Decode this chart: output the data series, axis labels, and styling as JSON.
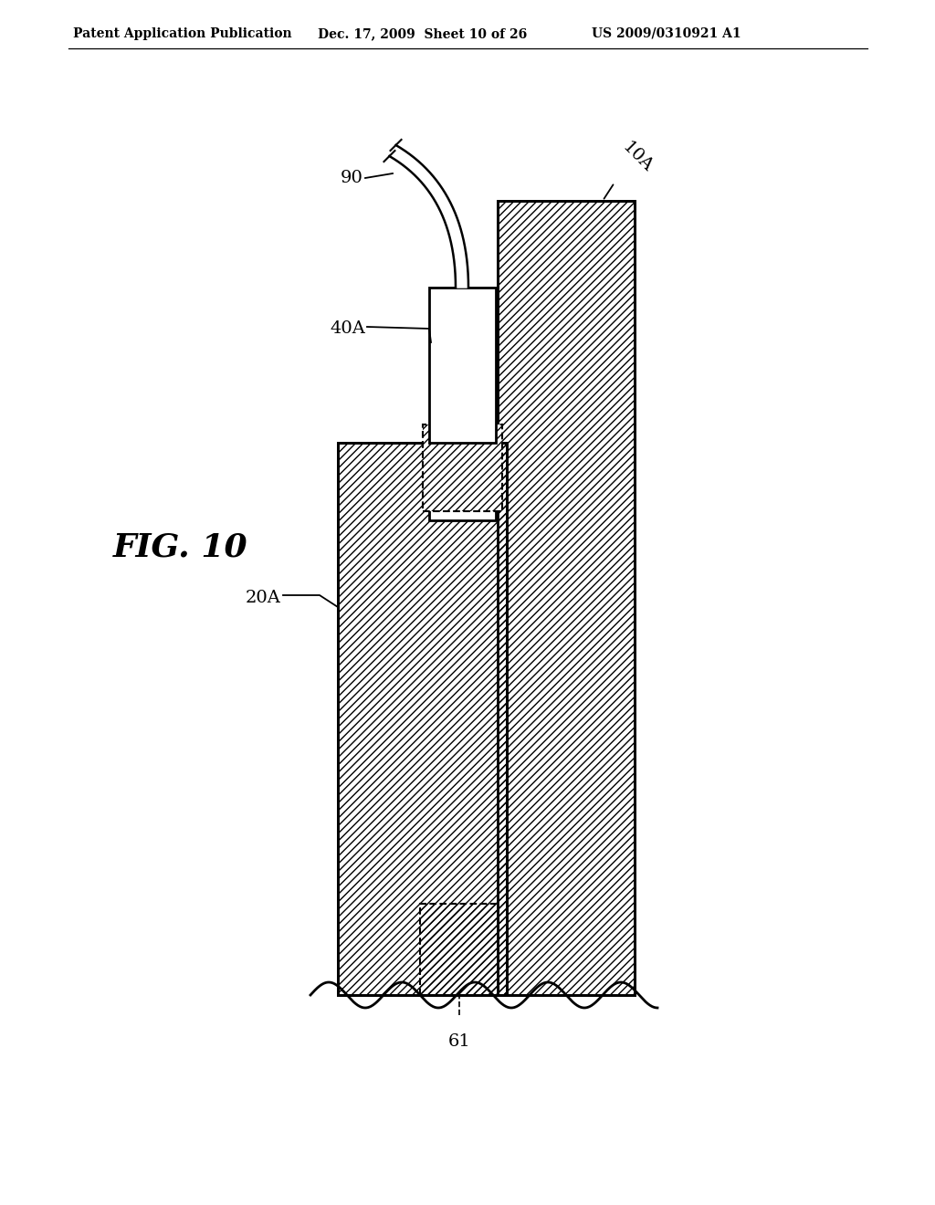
{
  "header_left": "Patent Application Publication",
  "header_center": "Dec. 17, 2009  Sheet 10 of 26",
  "header_right": "US 2009/0310921 A1",
  "fig_label": "FIG. 10",
  "label_10A": "10A",
  "label_20A": "20A",
  "label_40A": "40A",
  "label_61": "61",
  "label_90": "90",
  "bg_color": "#ffffff"
}
